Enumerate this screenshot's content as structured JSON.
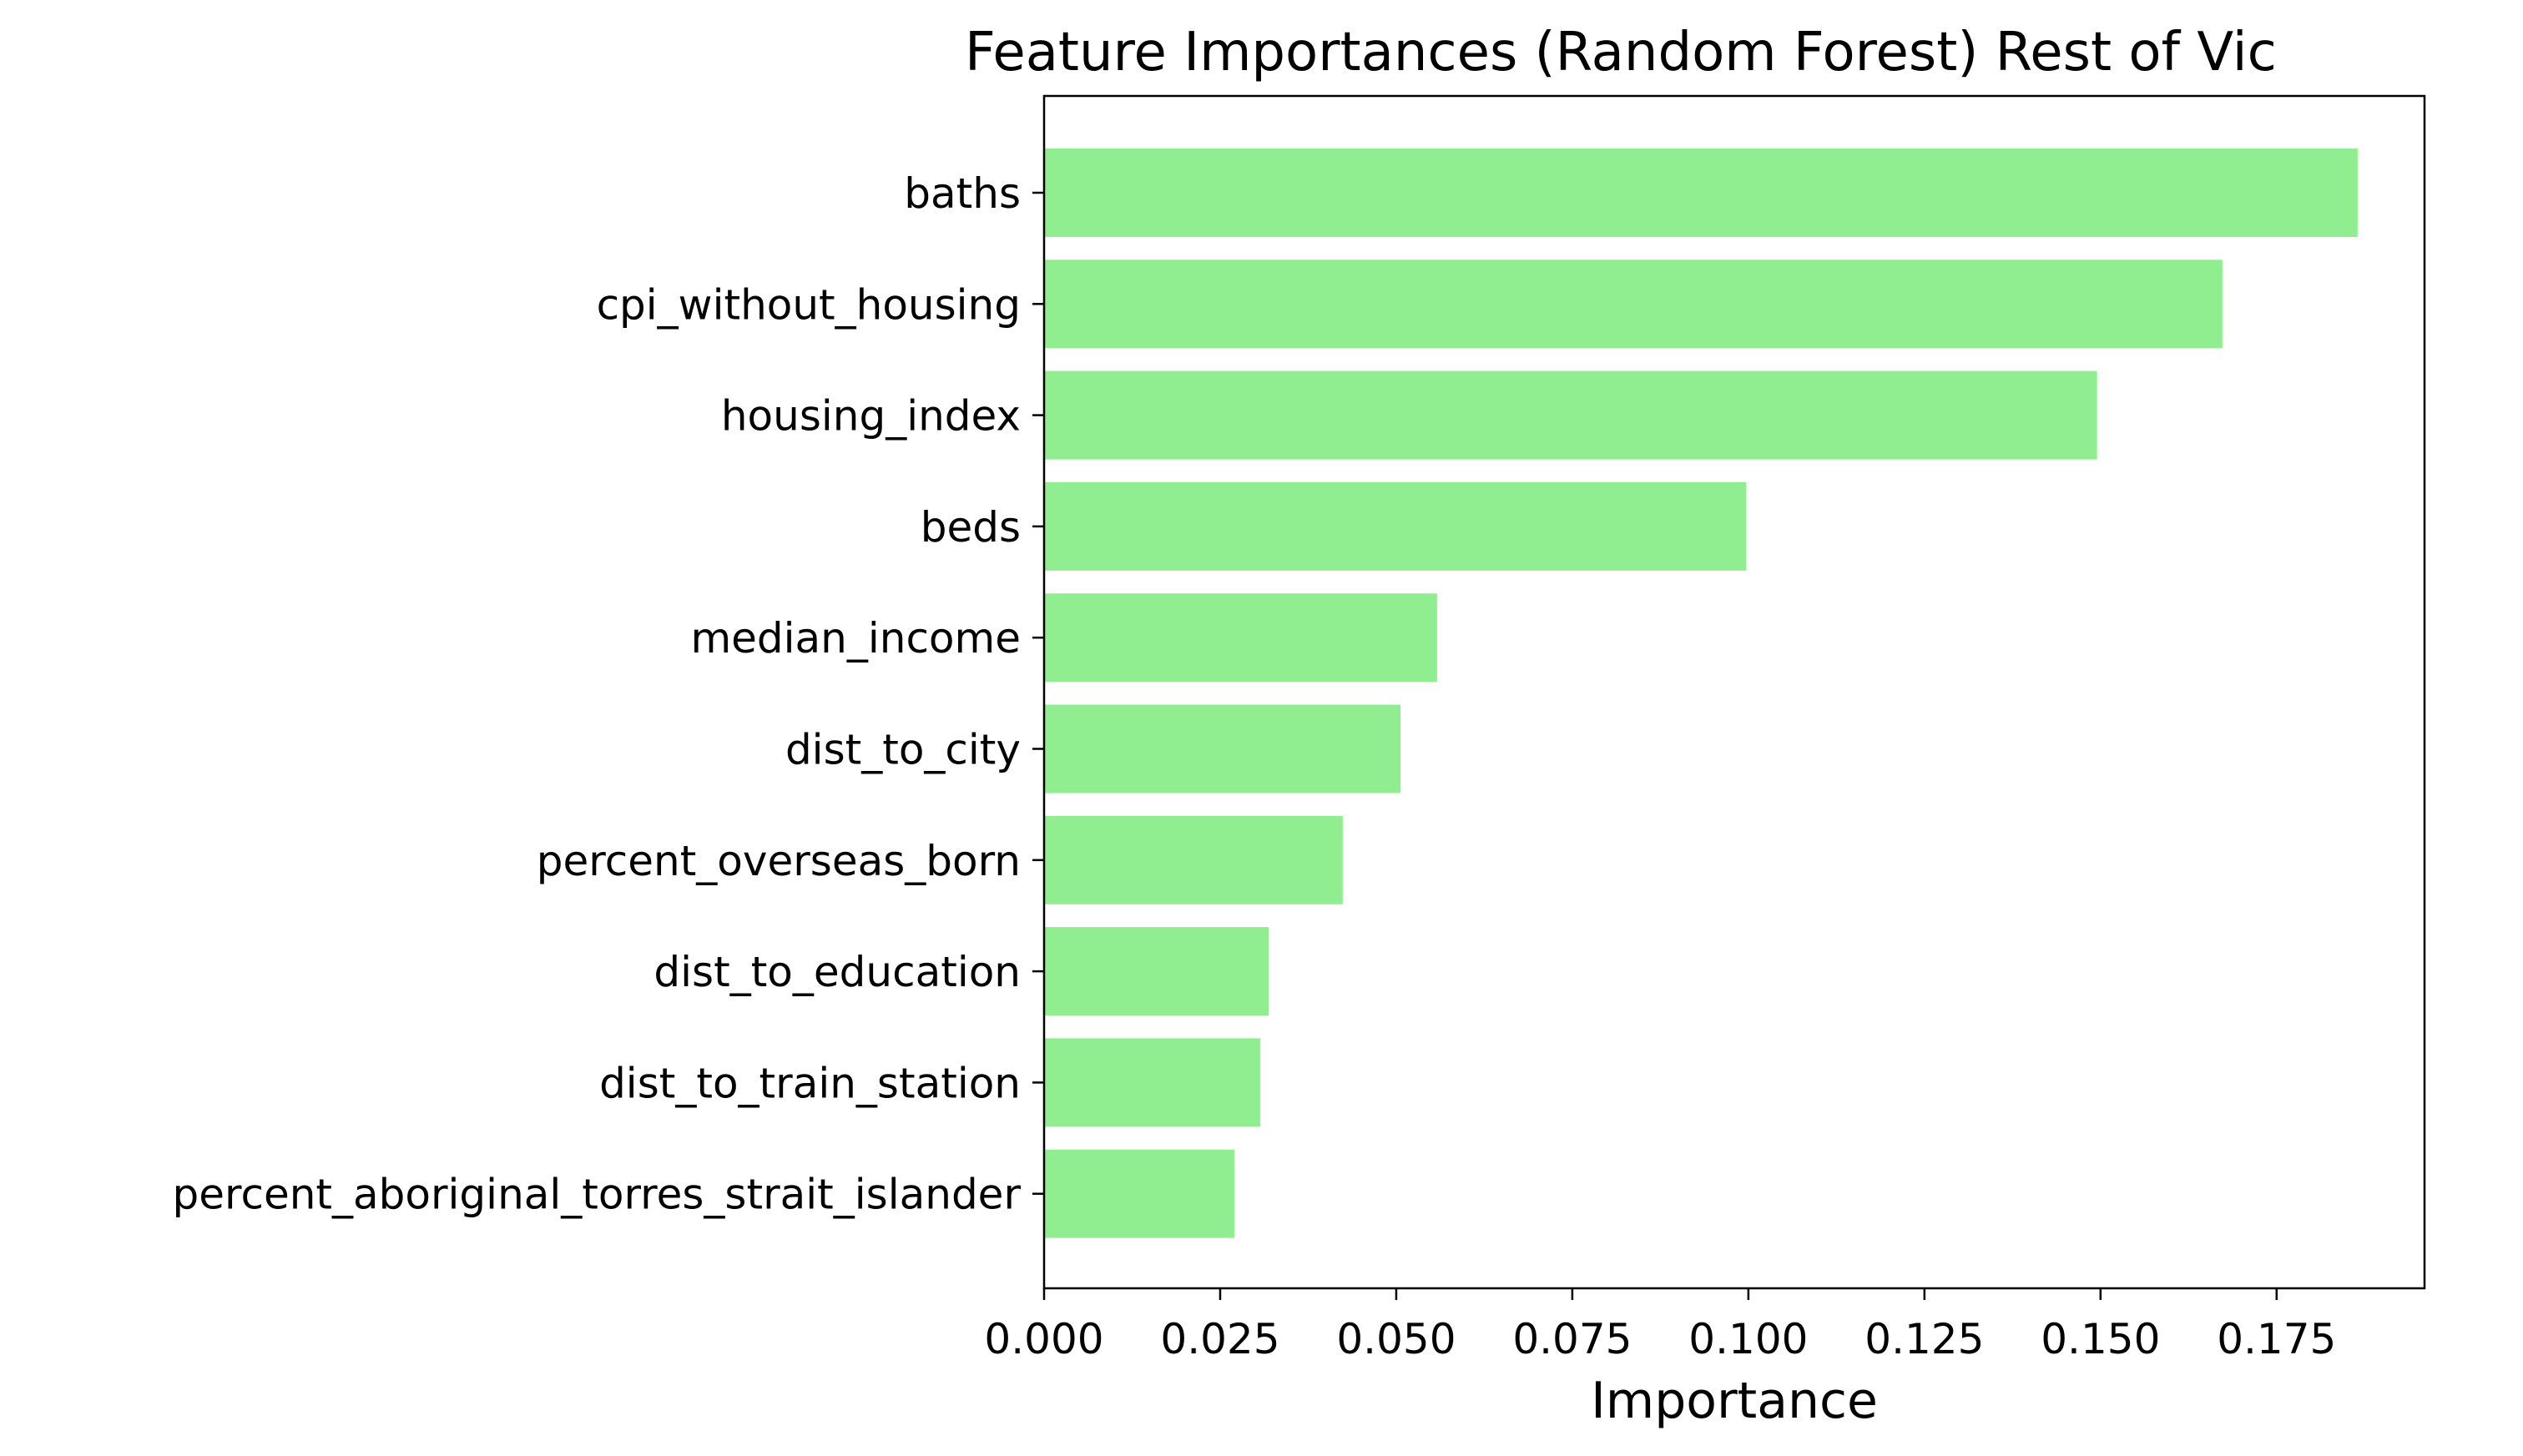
{
  "chart_data": {
    "type": "bar",
    "orientation": "horizontal",
    "title": "Feature Importances (Random Forest) Rest of Vic",
    "xlabel": "Importance",
    "ylabel": "",
    "categories": [
      "baths",
      "cpi_without_housing",
      "housing_index",
      "beds",
      "median_income",
      "dist_to_city",
      "percent_overseas_born",
      "dist_to_education",
      "dist_to_train_station",
      "percent_aboriginal_torres_strait_islander"
    ],
    "values": [
      0.1865,
      0.1673,
      0.1495,
      0.0997,
      0.0558,
      0.0506,
      0.0424,
      0.0319,
      0.0307,
      0.027
    ],
    "xlim": [
      0,
      0.196
    ],
    "xticks": [
      0.0,
      0.025,
      0.05,
      0.075,
      0.1,
      0.125,
      0.15,
      0.175
    ],
    "xtick_labels": [
      "0.000",
      "0.025",
      "0.050",
      "0.075",
      "0.100",
      "0.125",
      "0.150",
      "0.175"
    ],
    "bar_color": "#90ee90",
    "grid": false,
    "legend": "none"
  }
}
